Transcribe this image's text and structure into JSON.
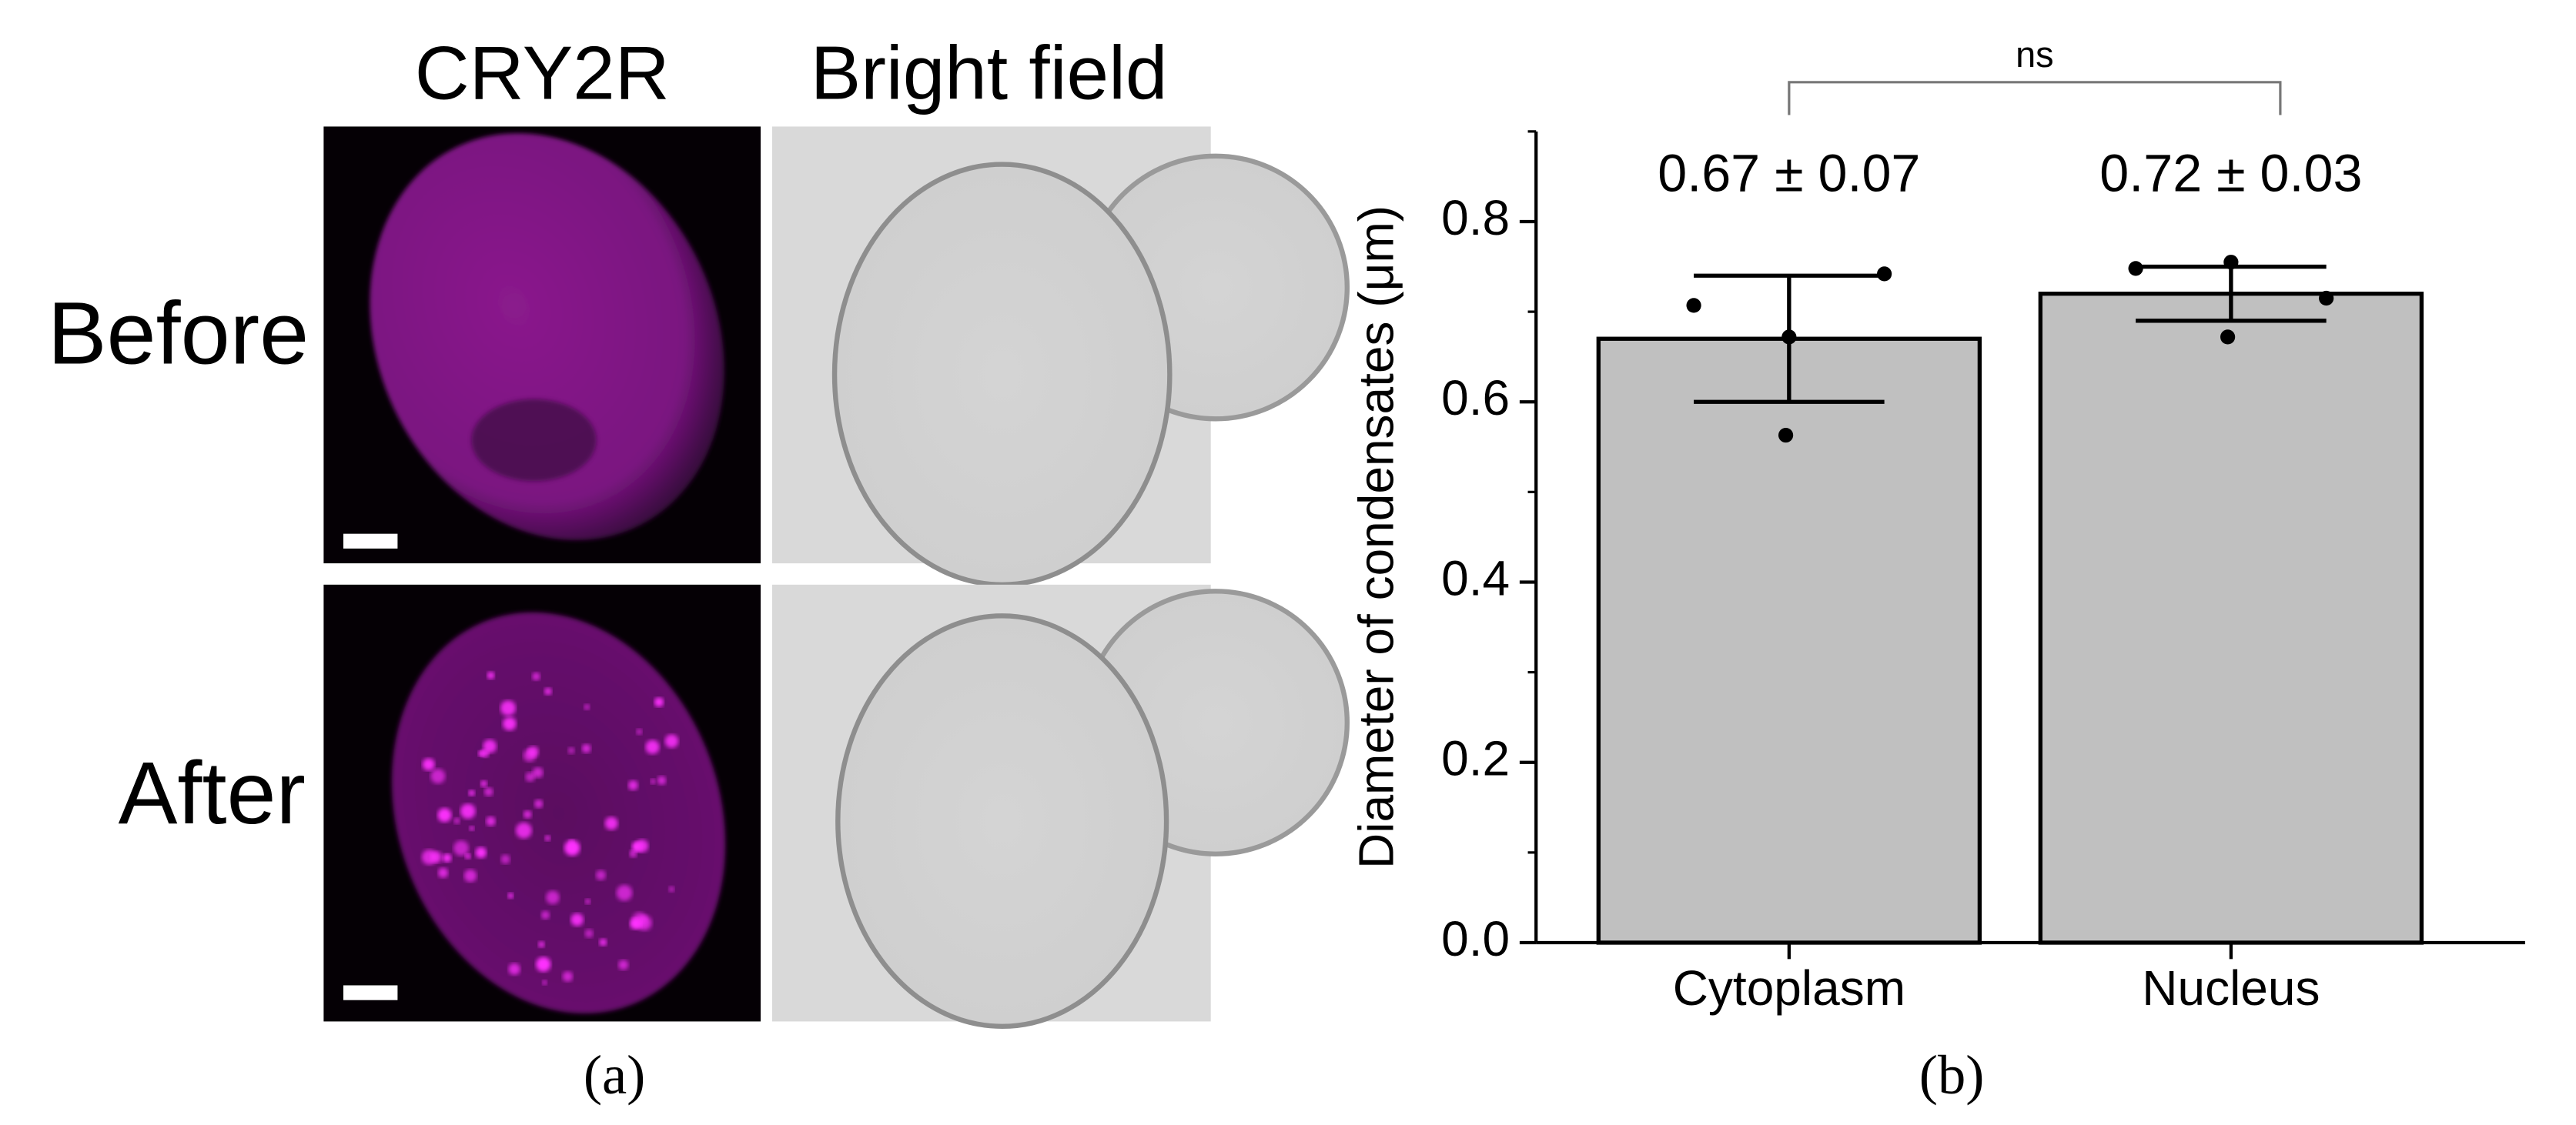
{
  "panel_a": {
    "columns": [
      "CRY2R",
      "Bright field"
    ],
    "rows": [
      "Before",
      "After"
    ],
    "caption": "(a)"
  },
  "panel_b_caption": "(b)",
  "chart_data": {
    "type": "bar",
    "ylabel": "Diameter of condensates (μm)",
    "categories": [
      "Cytoplasm",
      "Nucleus"
    ],
    "values": [
      0.67,
      0.72
    ],
    "value_labels": [
      "0.67 ± 0.07",
      "0.72 ± 0.03"
    ],
    "errors": [
      0.07,
      0.03
    ],
    "points": [
      [
        0.707,
        0.672,
        0.563,
        0.742
      ],
      [
        0.748,
        0.755,
        0.672,
        0.715
      ]
    ],
    "color": "#c0c0c0",
    "annotation": "ns",
    "ylim": [
      0,
      0.9
    ],
    "yticks": [
      {
        "value": 0,
        "label": "0.0"
      },
      0.2,
      0.4,
      0.6,
      0.8
    ],
    "minor_yticks": [
      0.1,
      0.3,
      0.5,
      0.7,
      0.9
    ]
  }
}
